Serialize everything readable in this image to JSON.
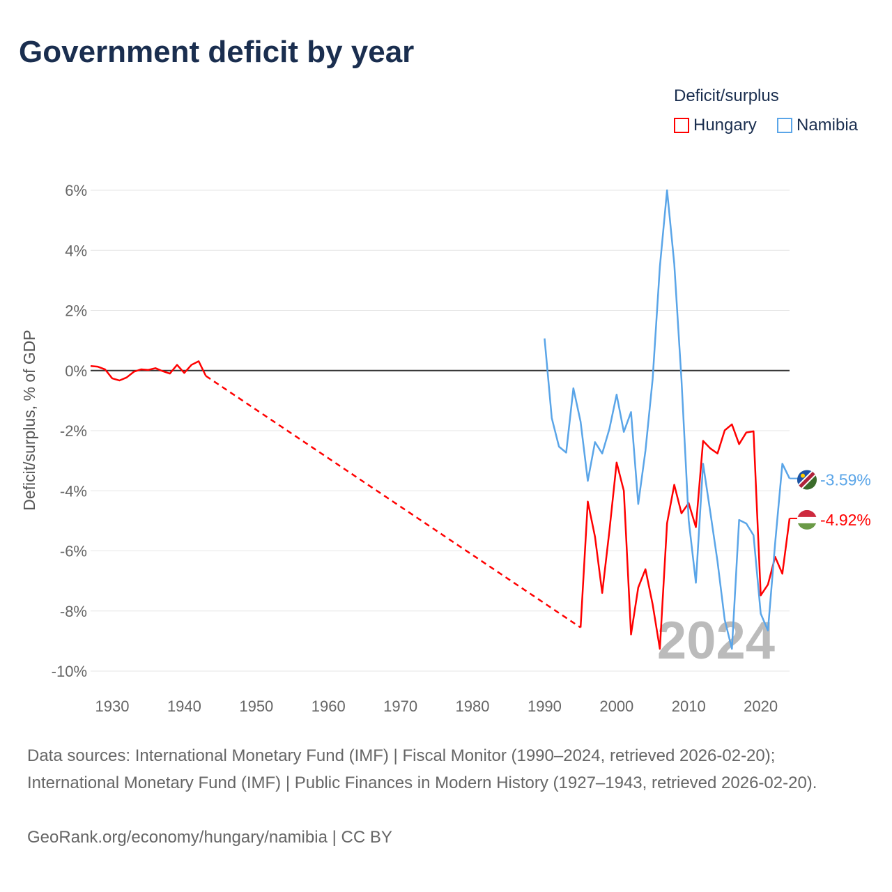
{
  "title": "Government deficit by year",
  "legend_title": "Deficit/surplus",
  "footer": {
    "sources": "Data sources: International Monetary Fund (IMF) | Fiscal Monitor (1990–2024, retrieved 2026-02-20); International Monetary Fund (IMF) | Public Finances in Modern History (1927–1943, retrieved 2026-02-20).",
    "credit": "GeoRank.org/economy/hungary/namibia | CC BY"
  },
  "chart_data": {
    "type": "line",
    "title": "Government deficit by year",
    "ylabel": "Deficit/surplus, % of GDP",
    "xlabel": "",
    "xlim": [
      1927,
      2024
    ],
    "ylim": [
      -10,
      6
    ],
    "yticks": [
      6,
      4,
      2,
      0,
      -2,
      -4,
      -6,
      -8,
      -10
    ],
    "ytick_labels": [
      "6%",
      "4%",
      "2%",
      "0%",
      "-2%",
      "-4%",
      "-6%",
      "-8%",
      "-10%"
    ],
    "xticks": [
      1930,
      1940,
      1950,
      1960,
      1970,
      1980,
      1990,
      2000,
      2010,
      2020
    ],
    "xtick_labels": [
      "1930",
      "1940",
      "1950",
      "1960",
      "1970",
      "1980",
      "1990",
      "2000",
      "2010",
      "2020"
    ],
    "year_label": "2024",
    "grid": true,
    "legend_position": "top-right",
    "series": [
      {
        "name": "Hungary",
        "color": "#ff0000",
        "end_label": "-4.92%",
        "x": [
          1927,
          1928,
          1929,
          1930,
          1931,
          1932,
          1933,
          1934,
          1935,
          1936,
          1937,
          1938,
          1939,
          1940,
          1941,
          1942,
          1943,
          1995,
          1996,
          1997,
          1998,
          1999,
          2000,
          2001,
          2002,
          2003,
          2004,
          2005,
          2006,
          2007,
          2008,
          2009,
          2010,
          2011,
          2012,
          2013,
          2014,
          2015,
          2016,
          2017,
          2018,
          2019,
          2020,
          2021,
          2022,
          2023,
          2024
        ],
        "values": [
          0.15,
          0.13,
          0.04,
          -0.26,
          -0.33,
          -0.23,
          -0.04,
          0.04,
          0.02,
          0.08,
          -0.02,
          -0.1,
          0.19,
          -0.08,
          0.19,
          0.31,
          -0.18,
          -8.55,
          -4.36,
          -5.53,
          -7.4,
          -5.33,
          -3.06,
          -4.0,
          -8.78,
          -7.22,
          -6.61,
          -7.78,
          -9.26,
          -5.08,
          -3.8,
          -4.75,
          -4.41,
          -5.21,
          -2.34,
          -2.59,
          -2.76,
          -1.99,
          -1.79,
          -2.45,
          -2.06,
          -2.02,
          -7.48,
          -7.12,
          -6.2,
          -6.76,
          -4.92
        ],
        "gap": [
          1943,
          1995
        ]
      },
      {
        "name": "Namibia",
        "color": "#5aa5e8",
        "end_label": "-3.59%",
        "x": [
          1990,
          1991,
          1992,
          1993,
          1994,
          1995,
          1996,
          1997,
          1998,
          1999,
          2000,
          2001,
          2002,
          2003,
          2004,
          2005,
          2006,
          2007,
          2008,
          2009,
          2010,
          2011,
          2012,
          2013,
          2014,
          2015,
          2016,
          2017,
          2018,
          2019,
          2020,
          2021,
          2022,
          2023,
          2024
        ],
        "values": [
          1.07,
          -1.58,
          -2.53,
          -2.73,
          -0.59,
          -1.7,
          -3.67,
          -2.38,
          -2.76,
          -1.94,
          -0.8,
          -2.04,
          -1.38,
          -4.44,
          -2.67,
          -0.28,
          3.45,
          6.0,
          3.55,
          -0.3,
          -4.97,
          -7.06,
          -3.1,
          -4.71,
          -6.35,
          -8.29,
          -9.26,
          -4.97,
          -5.09,
          -5.48,
          -8.09,
          -8.65,
          -5.74,
          -3.1,
          -3.59
        ]
      }
    ]
  }
}
